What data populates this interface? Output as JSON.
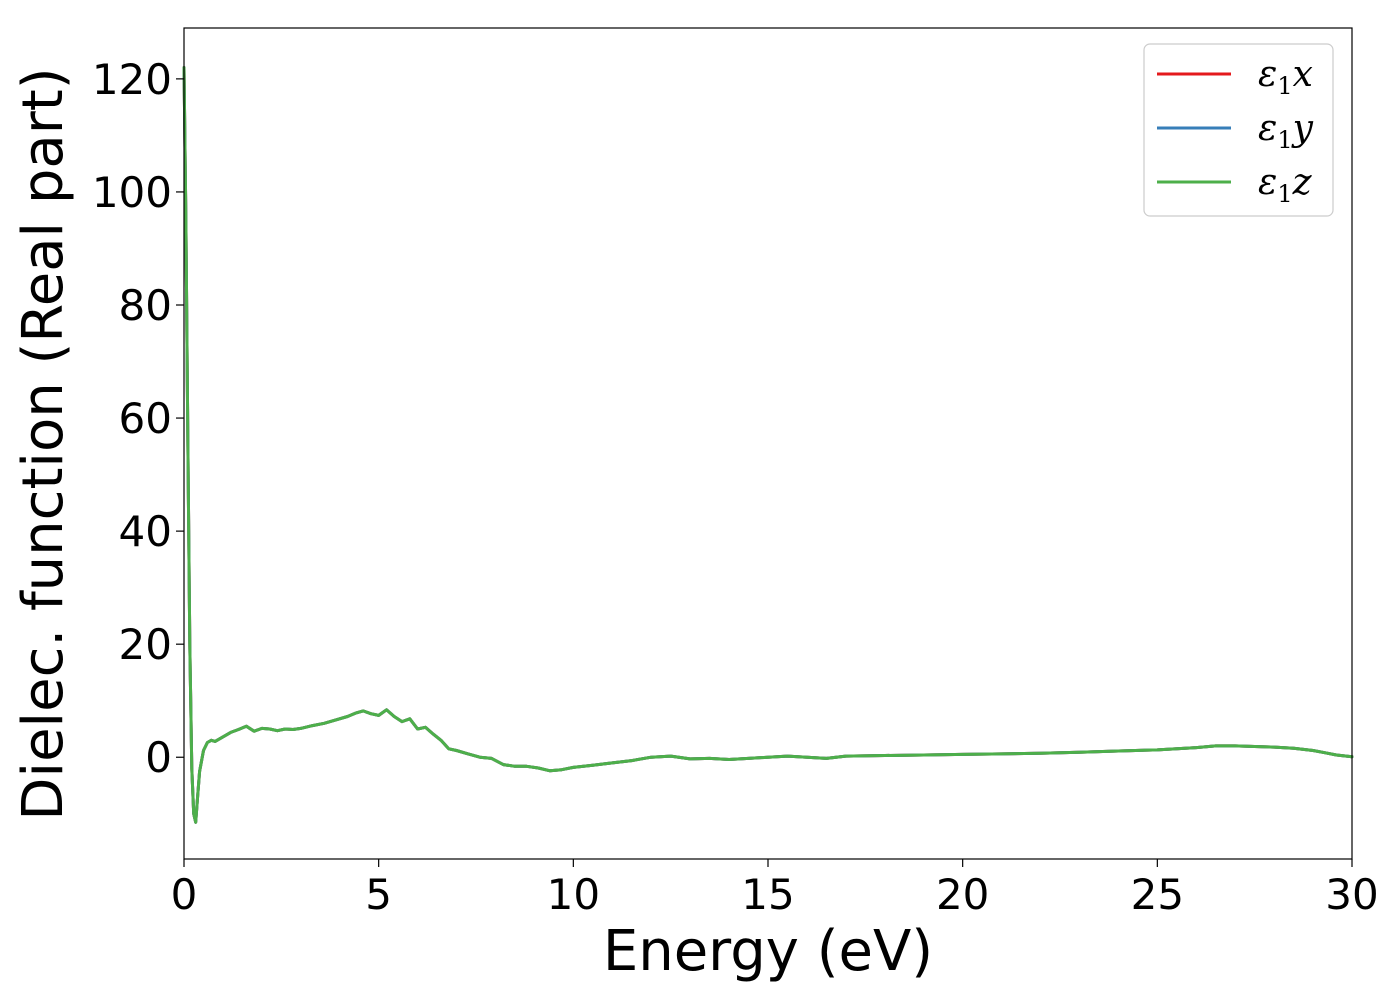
{
  "chart_data": {
    "type": "line",
    "xlabel": "Energy (eV)",
    "ylabel": "Dielec. function (Real part)",
    "xlim": [
      0,
      30
    ],
    "ylim": [
      -18,
      129
    ],
    "xticks": [
      0,
      5,
      10,
      15,
      20,
      25,
      30
    ],
    "yticks": [
      0,
      20,
      40,
      60,
      80,
      100,
      120
    ],
    "grid": false,
    "legend": {
      "position": "top-right",
      "entries": [
        {
          "symbol": "ε",
          "sub": "1",
          "var": "x",
          "color": "#e41a1c"
        },
        {
          "symbol": "ε",
          "sub": "1",
          "var": "y",
          "color": "#377eb8"
        },
        {
          "symbol": "ε",
          "sub": "1",
          "var": "z",
          "color": "#4daf4a"
        }
      ]
    },
    "x": [
      0.0,
      0.05,
      0.1,
      0.15,
      0.2,
      0.25,
      0.3,
      0.35,
      0.4,
      0.5,
      0.6,
      0.7,
      0.8,
      1.0,
      1.2,
      1.4,
      1.6,
      1.8,
      2.0,
      2.2,
      2.4,
      2.6,
      2.8,
      3.0,
      3.3,
      3.6,
      3.9,
      4.2,
      4.4,
      4.6,
      4.8,
      5.0,
      5.2,
      5.4,
      5.6,
      5.8,
      6.0,
      6.2,
      6.4,
      6.6,
      6.8,
      7.0,
      7.3,
      7.6,
      7.9,
      8.2,
      8.5,
      8.8,
      9.1,
      9.4,
      9.7,
      10.0,
      10.5,
      11.0,
      11.5,
      12.0,
      12.5,
      13.0,
      13.5,
      14.0,
      14.5,
      15.0,
      15.5,
      16.0,
      16.5,
      17.0,
      18.0,
      19.0,
      20.0,
      21.0,
      22.0,
      23.0,
      24.0,
      25.0,
      25.5,
      26.0,
      26.5,
      27.0,
      27.5,
      28.0,
      28.5,
      29.0,
      29.3,
      29.6,
      30.0
    ],
    "series": [
      {
        "name": "ε1x",
        "color": "#e41a1c",
        "values": [
          122.0,
          95.0,
          55.0,
          20.0,
          -2.0,
          -10.0,
          -11.5,
          -7.0,
          -2.5,
          1.2,
          2.6,
          3.0,
          2.8,
          3.6,
          4.4,
          4.9,
          5.5,
          4.6,
          5.1,
          5.0,
          4.7,
          5.0,
          4.9,
          5.1,
          5.6,
          6.0,
          6.6,
          7.2,
          7.8,
          8.2,
          7.7,
          7.4,
          8.4,
          7.2,
          6.3,
          6.8,
          5.0,
          5.3,
          4.1,
          3.0,
          1.5,
          1.2,
          0.6,
          0.0,
          -0.2,
          -1.3,
          -1.6,
          -1.6,
          -1.9,
          -2.4,
          -2.2,
          -1.8,
          -1.4,
          -1.0,
          -0.6,
          0.0,
          0.2,
          -0.3,
          -0.2,
          -0.4,
          -0.2,
          0.0,
          0.2,
          0.0,
          -0.2,
          0.2,
          0.3,
          0.4,
          0.5,
          0.6,
          0.7,
          0.9,
          1.1,
          1.3,
          1.5,
          1.7,
          2.0,
          2.0,
          1.9,
          1.8,
          1.6,
          1.2,
          0.8,
          0.4,
          0.1
        ]
      },
      {
        "name": "ε1y",
        "color": "#377eb8",
        "values": [
          122.0,
          95.0,
          55.0,
          20.0,
          -2.0,
          -10.0,
          -11.5,
          -7.0,
          -2.5,
          1.2,
          2.6,
          3.0,
          2.8,
          3.6,
          4.4,
          4.9,
          5.5,
          4.6,
          5.1,
          5.0,
          4.7,
          5.0,
          4.9,
          5.1,
          5.6,
          6.0,
          6.6,
          7.2,
          7.8,
          8.2,
          7.7,
          7.4,
          8.4,
          7.2,
          6.3,
          6.8,
          5.0,
          5.3,
          4.1,
          3.0,
          1.5,
          1.2,
          0.6,
          0.0,
          -0.2,
          -1.3,
          -1.6,
          -1.6,
          -1.9,
          -2.4,
          -2.2,
          -1.8,
          -1.4,
          -1.0,
          -0.6,
          0.0,
          0.2,
          -0.3,
          -0.2,
          -0.4,
          -0.2,
          0.0,
          0.2,
          0.0,
          -0.2,
          0.2,
          0.3,
          0.4,
          0.5,
          0.6,
          0.7,
          0.9,
          1.1,
          1.3,
          1.5,
          1.7,
          2.0,
          2.0,
          1.9,
          1.8,
          1.6,
          1.2,
          0.8,
          0.4,
          0.1
        ]
      },
      {
        "name": "ε1z",
        "color": "#4daf4a",
        "values": [
          122.0,
          95.0,
          55.0,
          20.0,
          -2.0,
          -10.0,
          -11.5,
          -7.0,
          -2.5,
          1.2,
          2.6,
          3.0,
          2.8,
          3.6,
          4.4,
          4.9,
          5.5,
          4.6,
          5.1,
          5.0,
          4.7,
          5.0,
          4.9,
          5.1,
          5.6,
          6.0,
          6.6,
          7.2,
          7.8,
          8.2,
          7.7,
          7.4,
          8.4,
          7.2,
          6.3,
          6.8,
          5.0,
          5.3,
          4.1,
          3.0,
          1.5,
          1.2,
          0.6,
          0.0,
          -0.2,
          -1.3,
          -1.6,
          -1.6,
          -1.9,
          -2.4,
          -2.2,
          -1.8,
          -1.4,
          -1.0,
          -0.6,
          0.0,
          0.2,
          -0.3,
          -0.2,
          -0.4,
          -0.2,
          0.0,
          0.2,
          0.0,
          -0.2,
          0.2,
          0.3,
          0.4,
          0.5,
          0.6,
          0.7,
          0.9,
          1.1,
          1.3,
          1.5,
          1.7,
          2.0,
          2.0,
          1.9,
          1.8,
          1.6,
          1.2,
          0.8,
          0.4,
          0.1
        ]
      }
    ]
  }
}
